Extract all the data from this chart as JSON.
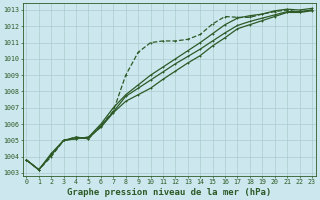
{
  "bg_color": "#cce8ee",
  "grid_color": "#aacccc",
  "line_color": "#2d5a27",
  "marker_color": "#2d5a27",
  "title": "Graphe pression niveau de la mer (hPa)",
  "title_fontsize": 6.5,
  "tick_fontsize": 4.8,
  "ylim": [
    1002.8,
    1013.4
  ],
  "xlim": [
    -0.3,
    23.3
  ],
  "yticks": [
    1003,
    1004,
    1005,
    1006,
    1007,
    1008,
    1009,
    1010,
    1011,
    1012,
    1013
  ],
  "xticks": [
    0,
    1,
    2,
    3,
    4,
    5,
    6,
    7,
    8,
    9,
    10,
    11,
    12,
    13,
    14,
    15,
    16,
    17,
    18,
    19,
    20,
    21,
    22,
    23
  ],
  "series": [
    {
      "y": [
        1003.8,
        1003.2,
        1004.0,
        1005.0,
        1005.2,
        1005.1,
        1005.9,
        1006.8,
        1009.0,
        1010.4,
        1011.0,
        1011.1,
        1011.1,
        1011.2,
        1011.5,
        1012.15,
        1012.6,
        1012.55,
        1012.55,
        1012.75,
        1012.9,
        1013.0,
        1012.85,
        1013.0
      ],
      "linestyle": "--",
      "linewidth": 0.9,
      "markersize": 2.0
    },
    {
      "y": [
        1003.8,
        1003.2,
        1004.1,
        1005.0,
        1005.1,
        1005.2,
        1006.0,
        1007.0,
        1007.8,
        1008.4,
        1009.0,
        1009.5,
        1010.0,
        1010.5,
        1011.0,
        1011.55,
        1012.1,
        1012.5,
        1012.65,
        1012.75,
        1012.95,
        1013.05,
        1013.0,
        1013.1
      ],
      "linestyle": "-",
      "linewidth": 0.9,
      "markersize": 2.0
    },
    {
      "y": [
        1003.8,
        1003.2,
        1004.2,
        1005.0,
        1005.1,
        1005.2,
        1005.8,
        1006.7,
        1007.4,
        1007.8,
        1008.2,
        1008.75,
        1009.25,
        1009.75,
        1010.2,
        1010.8,
        1011.3,
        1011.85,
        1012.1,
        1012.35,
        1012.6,
        1012.85,
        1012.85,
        1012.95
      ],
      "linestyle": "-",
      "linewidth": 0.9,
      "markersize": 2.0
    },
    {
      "y": [
        1003.8,
        1003.2,
        1004.1,
        1005.0,
        1005.2,
        1005.1,
        1005.9,
        1006.75,
        1007.7,
        1008.2,
        1008.7,
        1009.2,
        1009.7,
        1010.15,
        1010.6,
        1011.1,
        1011.6,
        1012.05,
        1012.3,
        1012.5,
        1012.7,
        1012.9,
        1012.9,
        1013.0
      ],
      "linestyle": "-",
      "linewidth": 0.9,
      "markersize": 2.0
    }
  ]
}
